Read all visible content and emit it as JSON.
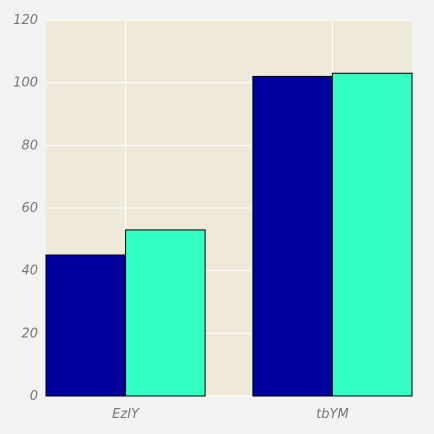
{
  "chart_data": {
    "type": "bar",
    "categories": [
      "EzIY",
      "tbYM"
    ],
    "series": [
      {
        "values": [
          45,
          102
        ],
        "color": "#00009c"
      },
      {
        "values": [
          53,
          103
        ],
        "color": "#33ffc4"
      }
    ],
    "title": "",
    "xlabel": "",
    "ylabel": "",
    "ylim": [
      0,
      120
    ],
    "yticks": [
      0,
      20,
      40,
      60,
      80,
      100,
      120
    ],
    "grid": true,
    "legend": "none",
    "plot_background": "#efe9d9",
    "page_background": "#f2f2f2",
    "grid_color": "#ffffff"
  }
}
